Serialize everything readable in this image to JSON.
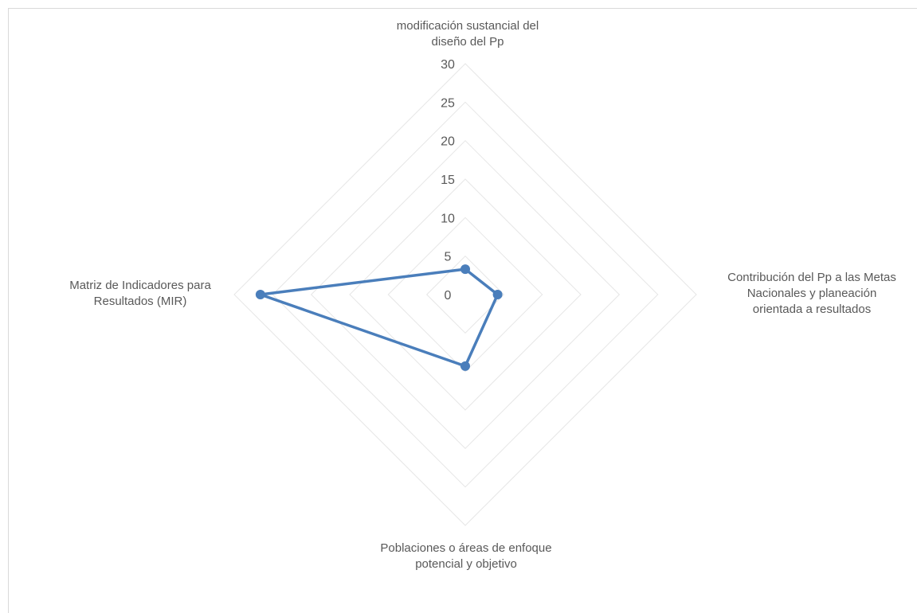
{
  "chart_data": {
    "type": "radar",
    "axes": [
      [
        "modificación sustancial del",
        "diseño del Pp"
      ],
      [
        "Contribución del Pp a las Metas",
        "Nacionales y planeación",
        "orientada a resultados"
      ],
      [
        "Poblaciones o áreas de enfoque",
        "potencial y objetivo"
      ],
      [
        "Matriz de Indicadores para",
        "Resultados (MIR)"
      ]
    ],
    "ticks": [
      "0",
      "5",
      "10",
      "15",
      "20",
      "25",
      "30"
    ],
    "range": [
      0,
      30
    ],
    "series": [
      {
        "values": [
          3.3,
          4.2,
          9.3,
          26.6
        ]
      }
    ],
    "colors": {
      "series": "#4a7ebb",
      "grid": "#e6e6e6",
      "text": "#595959"
    }
  }
}
